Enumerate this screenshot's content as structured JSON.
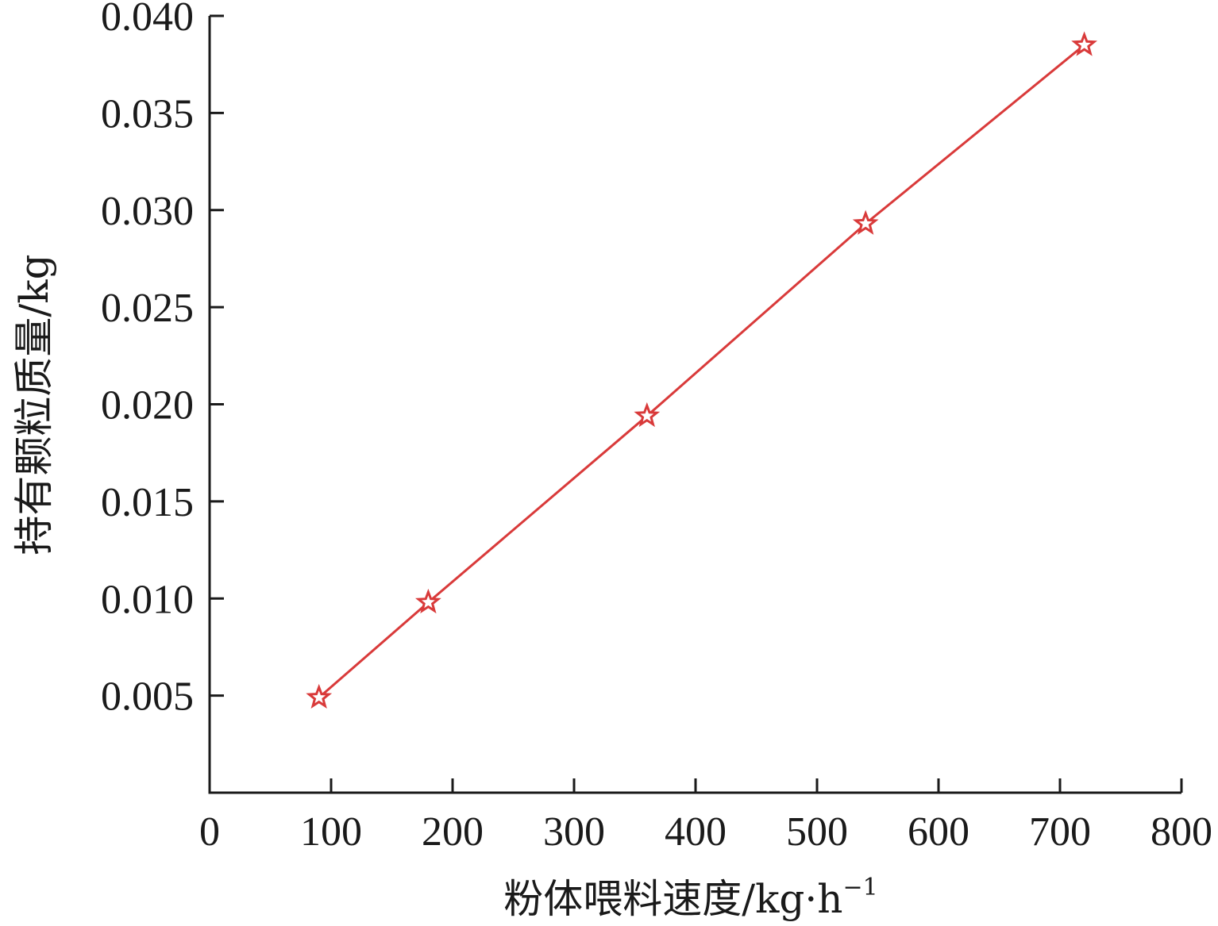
{
  "chart_data": {
    "type": "line",
    "xlabel": "粉体喂料速度/kg·h",
    "xlabel_superscript": "−1",
    "ylabel": "持有颗粒质量/kg",
    "xlim": [
      0,
      800
    ],
    "ylim": [
      0,
      0.04
    ],
    "x_ticks": [
      0,
      100,
      200,
      300,
      400,
      500,
      600,
      700,
      800
    ],
    "x_tick_labels": [
      "0",
      "100",
      "200",
      "300",
      "400",
      "500",
      "600",
      "700",
      "800"
    ],
    "y_ticks": [
      0.005,
      0.01,
      0.015,
      0.02,
      0.025,
      0.03,
      0.035,
      0.04
    ],
    "y_tick_labels": [
      "0.005",
      "0.010",
      "0.015",
      "0.020",
      "0.025",
      "0.030",
      "0.035",
      "0.040"
    ],
    "grid": false,
    "series": [
      {
        "marker": "star",
        "color": "#d93a3a",
        "x": [
          90,
          180,
          360,
          540,
          720
        ],
        "y": [
          0.0049,
          0.0098,
          0.0194,
          0.0293,
          0.0385
        ]
      }
    ]
  }
}
